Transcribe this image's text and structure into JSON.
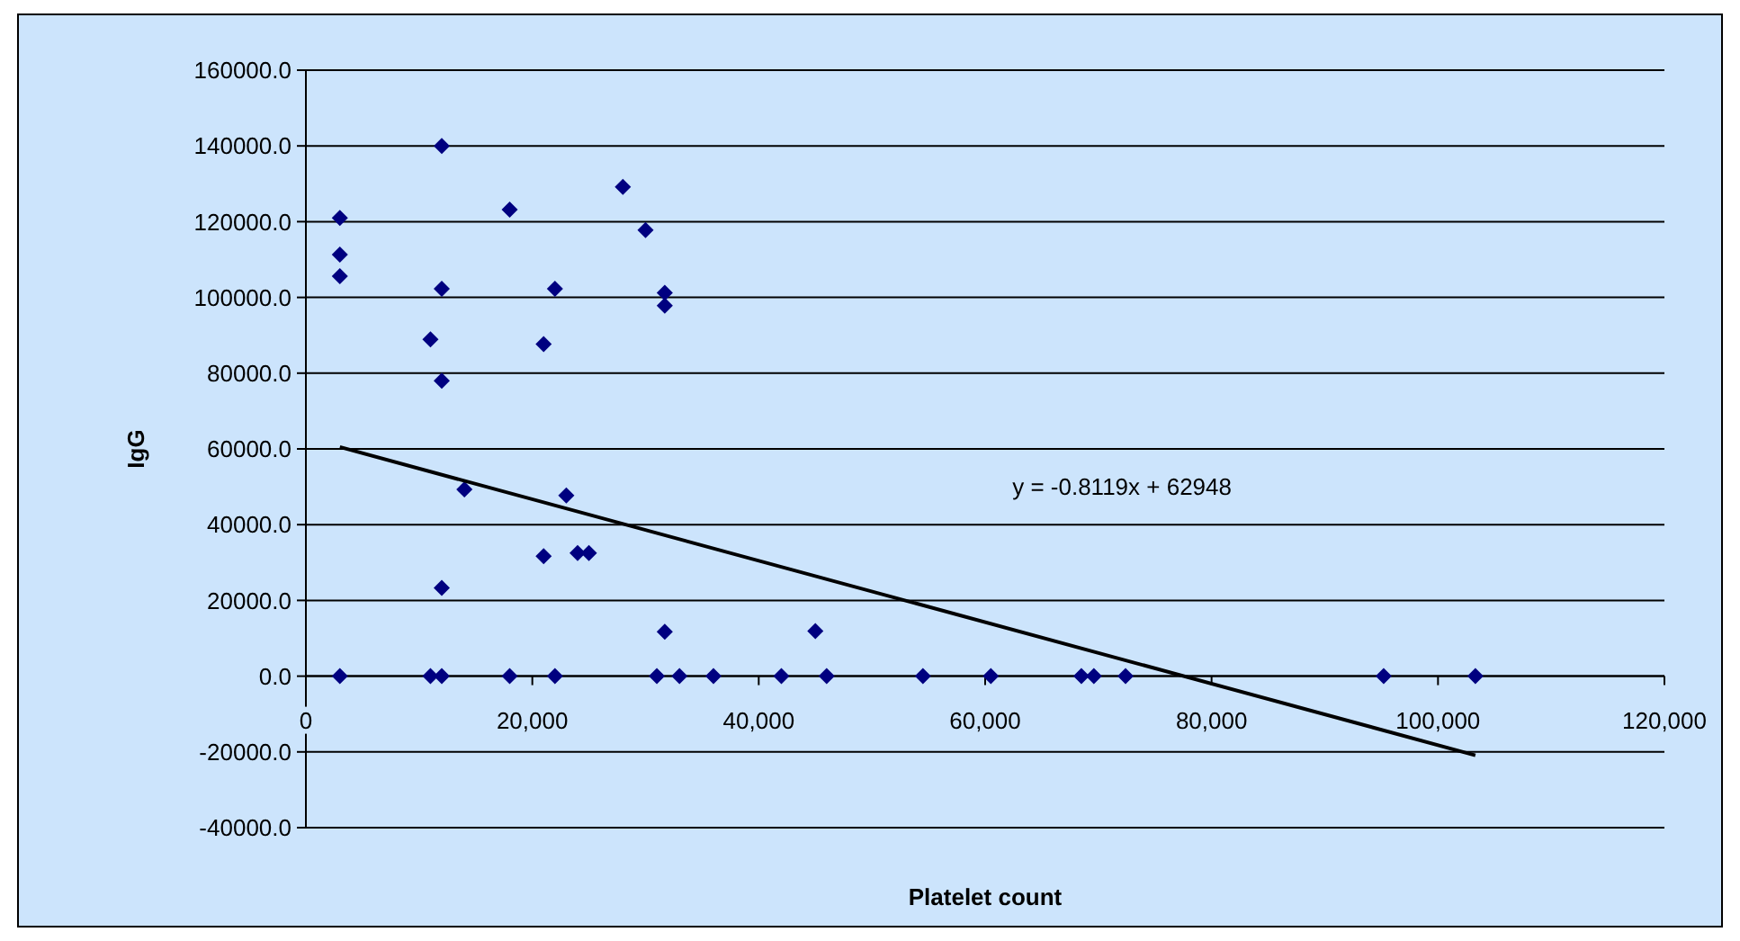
{
  "chart_data": {
    "type": "scatter",
    "xlabel": "Platelet count",
    "ylabel": "IgG",
    "grid": "y",
    "xlim": [
      0,
      120000
    ],
    "ylim": [
      -40000,
      160000
    ],
    "xticks": [
      0,
      {
        "value": 20000,
        "label": "20,000"
      },
      {
        "value": 40000,
        "label": "40,000"
      },
      {
        "value": 60000,
        "label": "60,000"
      },
      {
        "value": 80000,
        "label": "80,000"
      },
      {
        "value": 100000,
        "label": "100,000"
      },
      {
        "value": 120000,
        "label": "120,000"
      }
    ],
    "yticks": [
      {
        "value": -40000,
        "label": "-40000.0"
      },
      {
        "value": -20000,
        "label": "-20000.0"
      },
      {
        "value": 0,
        "label": "0.0"
      },
      {
        "value": 20000,
        "label": "20000.0"
      },
      {
        "value": 40000,
        "label": "40000.0"
      },
      {
        "value": 60000,
        "label": "60000.0"
      },
      {
        "value": 80000,
        "label": "80000.0"
      },
      {
        "value": 100000,
        "label": "100000.0"
      },
      {
        "value": 120000,
        "label": "120000.0"
      },
      {
        "value": 140000,
        "label": "140000.0"
      },
      {
        "value": 160000,
        "label": "160000.0"
      }
    ],
    "series": [
      {
        "marker": "diamond",
        "color": "#000080",
        "x": [
          3000,
          3000,
          3000,
          3000,
          11000,
          11000,
          12000,
          12000,
          12000,
          12000,
          12000,
          14000,
          18000,
          18000,
          21000,
          21000,
          22000,
          22000,
          23000,
          24000,
          25000,
          28000,
          30000,
          31000,
          31700,
          31700,
          31700,
          33000,
          36000,
          42000,
          45000,
          46000,
          54500,
          60500,
          68500,
          69600,
          72400,
          95200,
          103300
        ],
        "values": [
          121000,
          111300,
          105600,
          0,
          88900,
          0,
          140000,
          102300,
          78000,
          23300,
          0,
          49300,
          123200,
          0,
          87700,
          31700,
          102300,
          0,
          47700,
          32500,
          32500,
          129200,
          117800,
          0,
          101200,
          97800,
          11700,
          0,
          0,
          0,
          11900,
          0,
          0,
          0,
          0,
          0,
          0,
          0,
          0
        ]
      },
      {
        "type": "line",
        "color": "#000000",
        "x": [
          3000,
          103300
        ],
        "values": [
          60500,
          -20900
        ]
      }
    ],
    "annotations": [
      "y = -0.8119x + 62948"
    ]
  }
}
